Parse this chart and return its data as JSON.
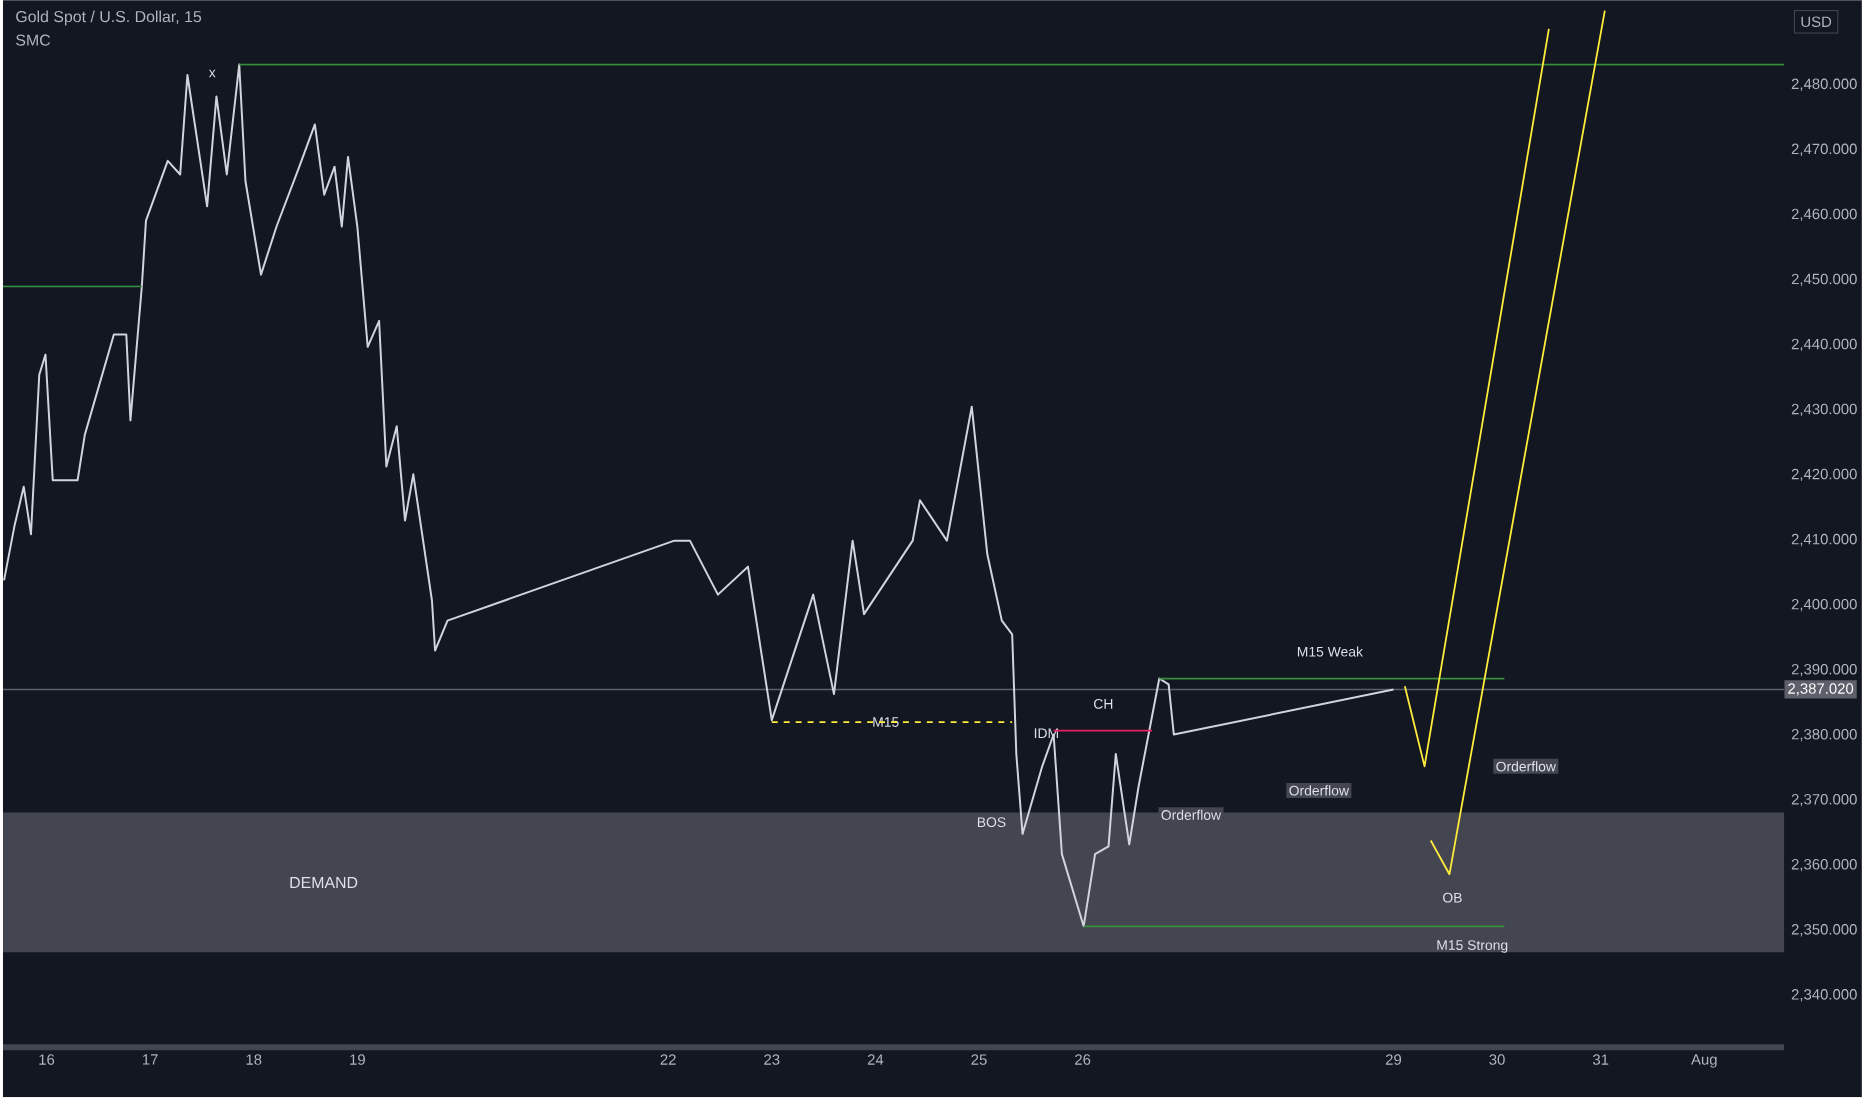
{
  "chart_data": {
    "type": "line",
    "title": "Gold Spot / U.S. Dollar, 15",
    "subtitle": "SMC",
    "ylabel": "USD",
    "xlim": [
      15.58,
      32.77
    ],
    "ylim": [
      2332,
      2493
    ],
    "xticks": [
      16,
      17,
      18,
      19,
      22,
      23,
      24,
      25,
      26,
      29,
      30,
      31,
      {
        "value": 32,
        "label": "Aug"
      }
    ],
    "yticks": [
      {
        "value": 2340,
        "label": "2,340.000"
      },
      {
        "value": 2350,
        "label": "2,350.000"
      },
      {
        "value": 2360,
        "label": "2,360.000"
      },
      {
        "value": 2370,
        "label": "2,370.000"
      },
      {
        "value": 2380,
        "label": "2,380.000"
      },
      {
        "value": 2390,
        "label": "2,390.000"
      },
      {
        "value": 2400,
        "label": "2,400.000"
      },
      {
        "value": 2410,
        "label": "2,410.000"
      },
      {
        "value": 2420,
        "label": "2,420.000"
      },
      {
        "value": 2430,
        "label": "2,430.000"
      },
      {
        "value": 2440,
        "label": "2,440.000"
      },
      {
        "value": 2450,
        "label": "2,450.000"
      },
      {
        "value": 2460,
        "label": "2,460.000"
      },
      {
        "value": 2470,
        "label": "2,470.000"
      },
      {
        "value": 2480,
        "label": "2,480.000"
      }
    ],
    "series": [
      {
        "color": "#d1d4dc",
        "x": [
          15.59,
          15.69,
          15.78,
          15.85,
          15.93,
          15.99,
          16.06,
          16.3,
          16.37,
          16.65,
          16.77,
          16.81,
          16.92,
          16.96,
          17.17,
          17.29,
          17.36,
          17.55,
          17.64,
          17.74,
          17.86,
          17.92,
          18.07,
          18.22,
          18.44,
          18.59,
          18.68,
          18.78,
          18.85,
          18.91,
          19.0,
          19.1,
          19.21,
          19.28,
          19.38,
          19.46,
          19.54,
          19.72,
          19.75,
          19.87,
          22.06,
          22.21,
          22.48,
          22.77,
          23.0,
          23.4,
          23.6,
          23.78,
          23.89,
          24.36,
          24.43,
          24.69,
          24.93,
          25.08,
          25.22,
          25.32,
          25.36,
          25.42,
          25.61,
          25.72,
          25.8,
          26.01,
          26.12,
          26.25,
          26.32,
          26.45,
          26.54,
          26.74,
          26.83,
          26.88,
          29.0
        ],
        "values": [
          2403.8,
          2412.1,
          2418.2,
          2410.9,
          2435.4,
          2438.5,
          2419.2,
          2419.2,
          2426.2,
          2441.6,
          2441.6,
          2428.4,
          2449.0,
          2459.1,
          2468.3,
          2466.2,
          2481.5,
          2461.3,
          2478.2,
          2466.2,
          2483.1,
          2465.2,
          2450.8,
          2458.2,
          2467.4,
          2473.9,
          2463.1,
          2467.4,
          2458.2,
          2468.9,
          2458.2,
          2439.7,
          2443.7,
          2421.3,
          2427.5,
          2413.0,
          2420.1,
          2400.7,
          2393.0,
          2397.6,
          2409.9,
          2409.9,
          2401.6,
          2405.9,
          2382.3,
          2401.6,
          2386.3,
          2409.9,
          2398.6,
          2409.9,
          2416.1,
          2409.9,
          2430.5,
          2407.8,
          2397.6,
          2395.5,
          2377.1,
          2364.8,
          2375.2,
          2380.1,
          2361.7,
          2350.6,
          2361.7,
          2362.9,
          2377.1,
          2363.2,
          2372.1,
          2388.7,
          2387.8,
          2380.1,
          2387.0
        ]
      },
      {
        "color": "#388e3c",
        "x": [
          17.86,
          32.77
        ],
        "values": [
          2483.1,
          2483.1
        ]
      },
      {
        "color": "#388e3c",
        "x": [
          15.58,
          16.92
        ],
        "values": [
          2449.0,
          2449.0
        ]
      },
      {
        "color": "#ffeb3b",
        "line_style": "dashed",
        "x": [
          23.0,
          25.32
        ],
        "values": [
          2382.0,
          2382.0
        ]
      },
      {
        "color": "#e91e63",
        "x": [
          25.72,
          26.67
        ],
        "values": [
          2380.7,
          2380.7
        ]
      },
      {
        "color": "#388e3c",
        "x": [
          26.74,
          30.07
        ],
        "values": [
          2388.7,
          2388.7
        ]
      },
      {
        "color": "#388e3c",
        "x": [
          26.01,
          30.07
        ],
        "values": [
          2350.6,
          2350.6
        ]
      },
      {
        "color": "#ffeb3b",
        "x": [
          29.11,
          29.3,
          30.5
        ],
        "values": [
          2387.5,
          2375.2,
          2488.6
        ]
      },
      {
        "color": "#ffeb3b",
        "x": [
          29.36,
          29.54,
          31.04
        ],
        "values": [
          2363.8,
          2358.6,
          2491.4
        ]
      }
    ],
    "bands": [
      {
        "axis": "y",
        "from": 2346.6,
        "to": 2368.1,
        "label": "DEMAND",
        "color": "#434651"
      }
    ],
    "ref_lines": [
      {
        "axis": "y",
        "value": 2387.02,
        "label": "2,387.020",
        "color": "#5d606b"
      }
    ],
    "annotations": [
      "x",
      "M15",
      "CH",
      "IDM",
      "BOS",
      "Orderflow",
      "Orderflow",
      "Orderflow",
      "OB",
      "M15 Weak",
      "M15 Strong"
    ],
    "grid": false
  }
}
